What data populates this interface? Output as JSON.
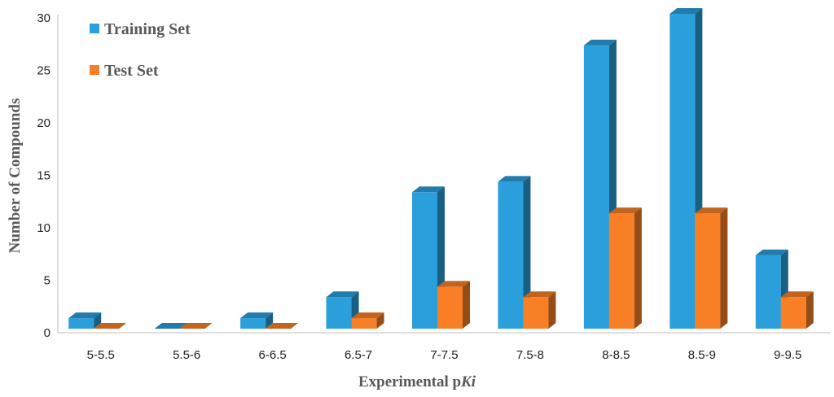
{
  "chart_data": {
    "type": "bar",
    "categories": [
      "5-5.5",
      "5.5-6",
      "6-6.5",
      "6.5-7",
      "7-7.5",
      "7.5-8",
      "8-8.5",
      "8.5-9",
      "9-9.5"
    ],
    "series": [
      {
        "name": "Training Set",
        "values": [
          1,
          0,
          1,
          3,
          13,
          14,
          27,
          30,
          7
        ],
        "color": "#2a9fdb"
      },
      {
        "name": "Test Set",
        "values": [
          0,
          0,
          0,
          1,
          4,
          3,
          11,
          11,
          3
        ],
        "color": "#f97f27"
      }
    ],
    "xlabel_prefix": "Experimental p",
    "xlabel_italic": "Ki",
    "ylabel": "Number of Compounds",
    "ylim": [
      0,
      30
    ],
    "yticks": [
      "0",
      "5",
      "10",
      "15",
      "20",
      "25",
      "30"
    ],
    "grid": false,
    "legend_position": "top-left"
  }
}
